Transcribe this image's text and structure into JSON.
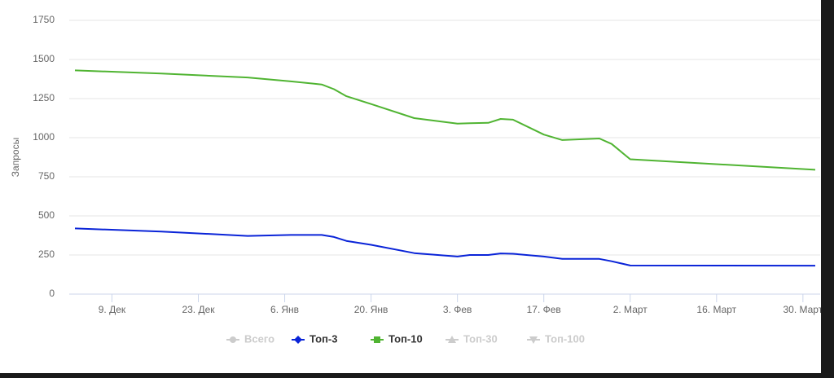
{
  "chart_data": {
    "type": "line",
    "y_label": "Запросы",
    "x": [
      "12-03",
      "12-17",
      "12-31",
      "01-07",
      "01-12",
      "01-14",
      "01-16",
      "01-20",
      "01-27",
      "02-03",
      "02-05",
      "02-08",
      "02-10",
      "02-12",
      "02-17",
      "02-20",
      "02-26",
      "02-28",
      "03-02",
      "04-01"
    ],
    "xlim": [
      "12-03",
      "04-01"
    ],
    "xticks": [
      {
        "value": "12-09",
        "label": "9. Дек"
      },
      {
        "value": "12-23",
        "label": "23. Дек"
      },
      {
        "value": "01-06",
        "label": "6. Янв"
      },
      {
        "value": "01-20",
        "label": "20. Янв"
      },
      {
        "value": "02-03",
        "label": "3. Фев"
      },
      {
        "value": "02-17",
        "label": "17. Фев"
      },
      {
        "value": "03-02",
        "label": "2. Март"
      },
      {
        "value": "03-16",
        "label": "16. Март"
      },
      {
        "value": "03-30",
        "label": "30. Март"
      }
    ],
    "ylim": [
      0,
      1750
    ],
    "yticks": [
      0,
      250,
      500,
      750,
      1000,
      1250,
      1500,
      1750
    ],
    "grid": true,
    "series": [
      {
        "name": "Всего",
        "visible": false,
        "marker": "circle",
        "color": "#cccccc",
        "values": null
      },
      {
        "name": "Топ-3",
        "visible": true,
        "marker": "diamond",
        "color": "#0a24d8",
        "values": [
          420,
          400,
          372,
          378,
          378,
          365,
          340,
          315,
          262,
          240,
          250,
          250,
          260,
          258,
          240,
          225,
          225,
          210,
          183,
          182
        ]
      },
      {
        "name": "Топ-10",
        "visible": true,
        "marker": "square",
        "color": "#50b432",
        "values": [
          1430,
          1410,
          1385,
          1360,
          1340,
          1310,
          1265,
          1215,
          1125,
          1090,
          1092,
          1095,
          1120,
          1115,
          1020,
          985,
          995,
          960,
          862,
          795
        ]
      },
      {
        "name": "Топ-30",
        "visible": false,
        "marker": "triangle",
        "color": "#cccccc",
        "values": null
      },
      {
        "name": "Топ-100",
        "visible": false,
        "marker": "triangle-down",
        "color": "#cccccc",
        "values": null
      }
    ]
  }
}
